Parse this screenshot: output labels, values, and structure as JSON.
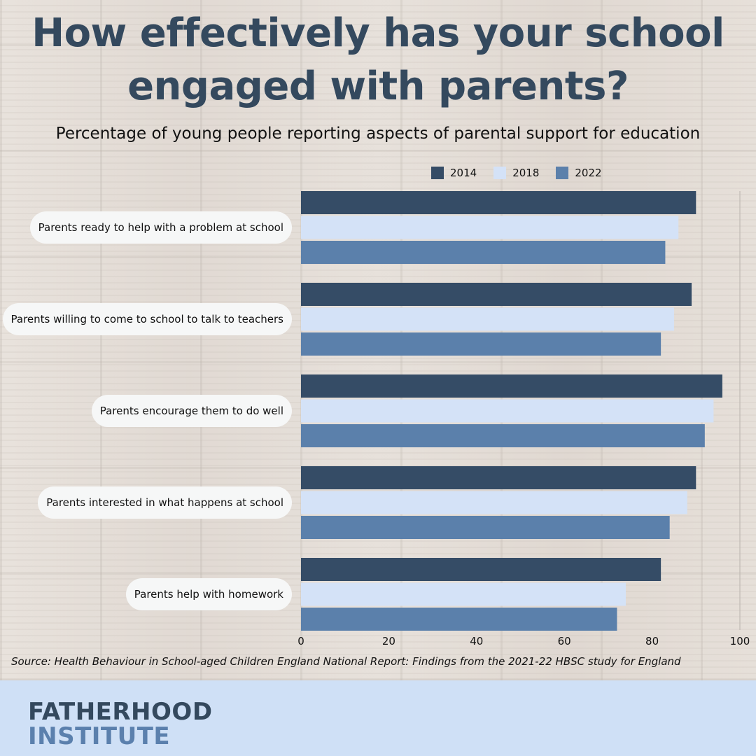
{
  "title": "How effectively has your school engaged with parents?",
  "chart_data": {
    "type": "bar",
    "orientation": "horizontal",
    "title": "How effectively has your school engaged with parents?",
    "subtitle": "Percentage of young people reporting aspects of parental support for education",
    "categories": [
      "Parents ready to help with a problem at school",
      "Parents willing to come to school to talk to teachers",
      "Parents encourage them to do well",
      "Parents interested in what happens at school",
      "Parents help with homework"
    ],
    "series": [
      {
        "name": "2014",
        "color": "#354c66",
        "values": [
          90,
          89,
          96,
          90,
          82
        ]
      },
      {
        "name": "2018",
        "color": "#d4e2f7",
        "values": [
          86,
          85,
          94,
          88,
          74
        ]
      },
      {
        "name": "2022",
        "color": "#5b80ab",
        "values": [
          83,
          82,
          92,
          84,
          72
        ]
      }
    ],
    "xlim": [
      0,
      100
    ],
    "xticks": [
      "0",
      "20",
      "40",
      "60",
      "80",
      "100"
    ],
    "legend_position": "top",
    "grid": false
  },
  "source": "Source: Health Behaviour in School-aged Children England National Report: Findings from the 2021-22 HBSC study for England",
  "logo": {
    "line1": "FATHERHOOD",
    "line2": "INSTITUTE"
  }
}
